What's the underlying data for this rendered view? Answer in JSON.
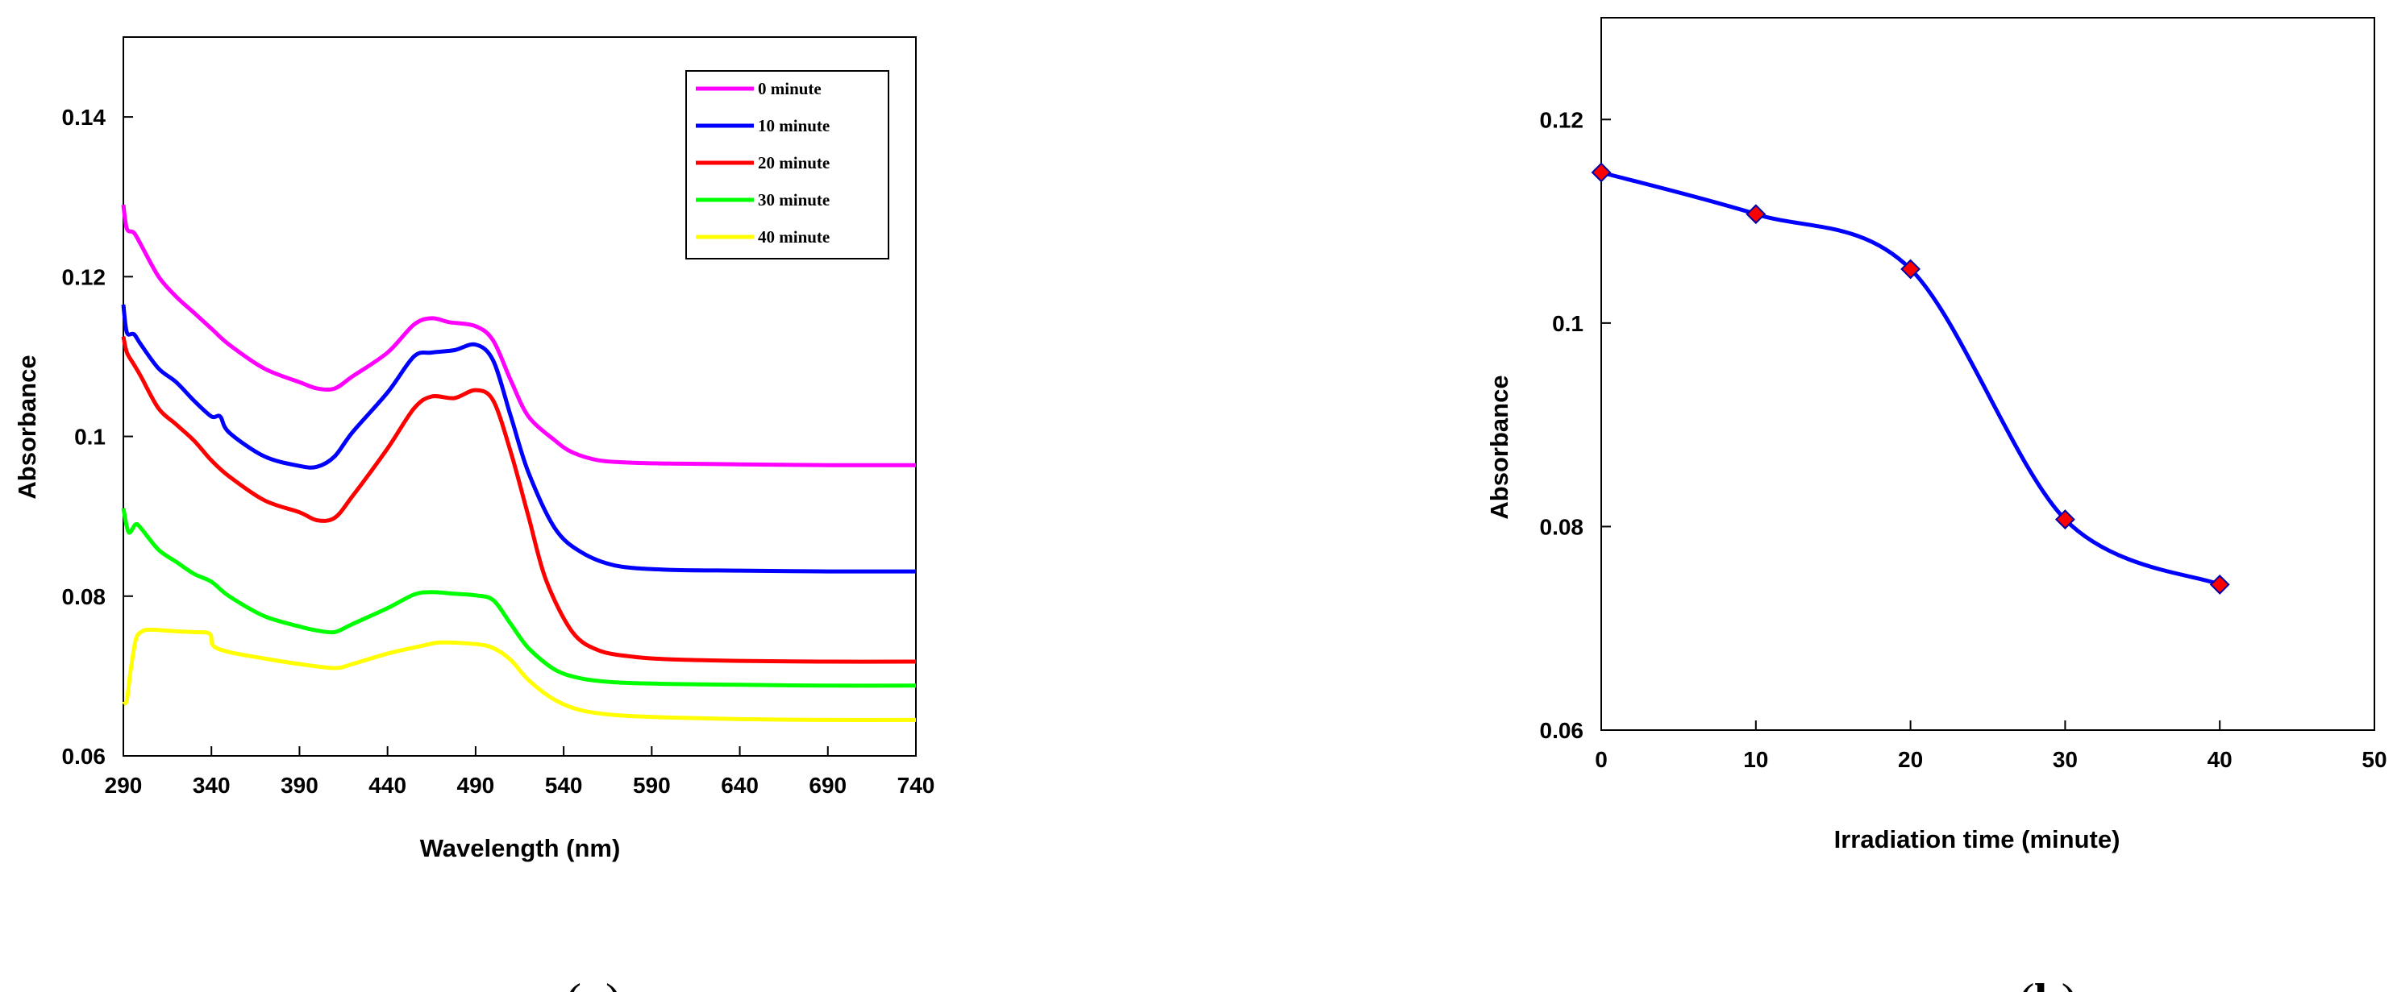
{
  "chart_data": [
    {
      "type": "line",
      "panel_label": "a",
      "xlabel": "Wavelength (nm)",
      "ylabel": "Absorbance",
      "xlim": [
        290,
        740
      ],
      "ylim": [
        0.06,
        0.15
      ],
      "xticks": [
        290,
        340,
        390,
        440,
        490,
        540,
        590,
        640,
        690,
        740
      ],
      "yticks": [
        "0.06",
        "0.08",
        "0.1",
        "0.12",
        "0.14"
      ],
      "ytick_values": [
        0.06,
        0.08,
        0.1,
        0.12,
        0.14
      ],
      "grid": false,
      "legend_position": "top-right",
      "series": [
        {
          "name": "0 minute",
          "color": "#ff00ff",
          "x": [
            290,
            292,
            296,
            300,
            310,
            320,
            330,
            340,
            350,
            370,
            390,
            400,
            410,
            420,
            440,
            455,
            465,
            475,
            490,
            500,
            510,
            520,
            535,
            545,
            560,
            580,
            600,
            640,
            690,
            740
          ],
          "y": [
            0.129,
            0.126,
            0.1255,
            0.124,
            0.12,
            0.1175,
            0.1155,
            0.1135,
            0.1115,
            0.1085,
            0.1068,
            0.106,
            0.106,
            0.1075,
            0.1105,
            0.114,
            0.1148,
            0.1143,
            0.1138,
            0.112,
            0.107,
            0.1025,
            0.0995,
            0.098,
            0.097,
            0.0967,
            0.0966,
            0.0965,
            0.0964,
            0.0964
          ]
        },
        {
          "name": "10 minute",
          "color": "#0000ff",
          "x": [
            290,
            292,
            296,
            300,
            310,
            320,
            330,
            340,
            345,
            350,
            370,
            390,
            400,
            410,
            420,
            440,
            455,
            465,
            478,
            490,
            500,
            510,
            520,
            535,
            550,
            570,
            600,
            640,
            690,
            740
          ],
          "y": [
            0.1165,
            0.113,
            0.1128,
            0.1115,
            0.1085,
            0.1068,
            0.1045,
            0.1025,
            0.1025,
            0.1005,
            0.0975,
            0.0963,
            0.0962,
            0.0975,
            0.1005,
            0.1055,
            0.11,
            0.1105,
            0.1108,
            0.1115,
            0.1095,
            0.1025,
            0.0955,
            0.0885,
            0.0855,
            0.0838,
            0.0833,
            0.0832,
            0.0831,
            0.0831
          ]
        },
        {
          "name": "20 minute",
          "color": "#ff0000",
          "x": [
            290,
            292,
            296,
            300,
            310,
            320,
            330,
            340,
            350,
            370,
            390,
            400,
            410,
            420,
            440,
            455,
            465,
            478,
            490,
            500,
            510,
            520,
            530,
            545,
            560,
            580,
            600,
            640,
            690,
            740
          ],
          "y": [
            0.1125,
            0.1105,
            0.109,
            0.1075,
            0.1035,
            0.1015,
            0.0995,
            0.097,
            0.095,
            0.092,
            0.0905,
            0.0895,
            0.0898,
            0.0925,
            0.0985,
            0.1035,
            0.105,
            0.1048,
            0.1058,
            0.1045,
            0.098,
            0.09,
            0.082,
            0.0755,
            0.0732,
            0.0724,
            0.0721,
            0.0719,
            0.0718,
            0.0718
          ]
        },
        {
          "name": "30 minute",
          "color": "#00ff00",
          "x": [
            290,
            293,
            297,
            300,
            310,
            320,
            330,
            340,
            350,
            370,
            390,
            400,
            410,
            420,
            440,
            455,
            465,
            478,
            490,
            500,
            510,
            520,
            535,
            550,
            570,
            600,
            640,
            690,
            740
          ],
          "y": [
            0.091,
            0.088,
            0.089,
            0.0885,
            0.0858,
            0.0843,
            0.0828,
            0.0818,
            0.08,
            0.0775,
            0.0762,
            0.0757,
            0.0755,
            0.0765,
            0.0785,
            0.0802,
            0.0805,
            0.0803,
            0.0801,
            0.0795,
            0.0765,
            0.0735,
            0.0708,
            0.0697,
            0.0692,
            0.069,
            0.0689,
            0.0688,
            0.0688
          ]
        },
        {
          "name": "40 minute",
          "color": "#ffff00",
          "x": [
            290,
            292,
            294,
            297,
            300,
            305,
            320,
            330,
            339,
            341,
            350,
            370,
            390,
            410,
            420,
            440,
            460,
            470,
            490,
            500,
            510,
            520,
            535,
            550,
            570,
            600,
            640,
            690,
            740
          ],
          "y": [
            0.0665,
            0.067,
            0.0705,
            0.0745,
            0.0755,
            0.0758,
            0.0756,
            0.0755,
            0.0753,
            0.0738,
            0.073,
            0.0722,
            0.0715,
            0.071,
            0.0715,
            0.0728,
            0.0738,
            0.0742,
            0.074,
            0.0735,
            0.072,
            0.0695,
            0.067,
            0.0657,
            0.0651,
            0.0648,
            0.0646,
            0.0645,
            0.0645
          ]
        }
      ]
    },
    {
      "type": "line",
      "panel_label": "b",
      "xlabel": "Irradiation  time (minute)",
      "ylabel": "Absorbance",
      "xlim": [
        0,
        50
      ],
      "ylim": [
        0.06,
        0.13
      ],
      "xticks": [
        0,
        10,
        20,
        30,
        40,
        50
      ],
      "yticks": [
        "0.06",
        "0.08",
        "0.1",
        "0.12"
      ],
      "ytick_values": [
        0.06,
        0.08,
        0.1,
        0.12
      ],
      "grid": false,
      "series": [
        {
          "color": "#0000ff",
          "marker": "diamond",
          "marker_color": "#ff0000",
          "x": [
            0,
            10,
            20,
            30,
            40
          ],
          "y": [
            0.1148,
            0.1107,
            0.1053,
            0.0807,
            0.0743
          ]
        }
      ]
    }
  ]
}
